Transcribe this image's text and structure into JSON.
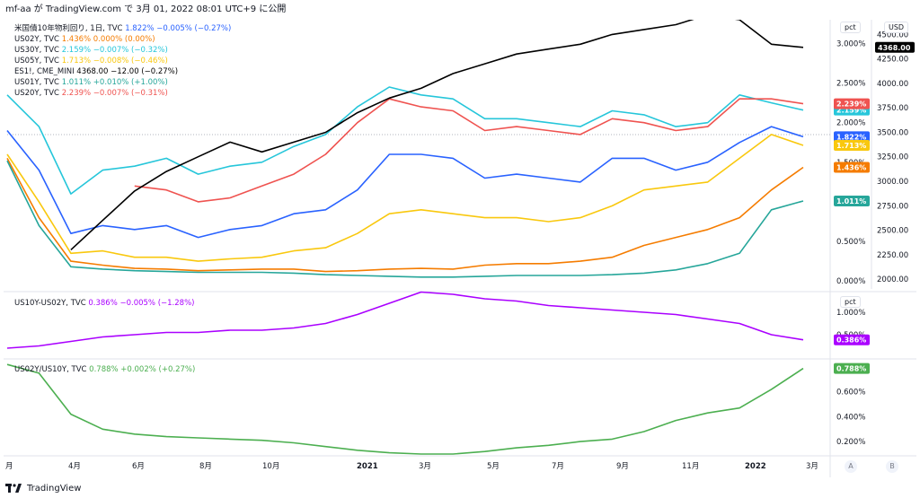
{
  "header": {
    "text": "mf-aa が TradingView.com で 3月 01, 2022 08:01 UTC+9 に公開"
  },
  "footer": {
    "brand": "TradingView"
  },
  "buttons": {
    "a": "A",
    "b": "B"
  },
  "colors": {
    "us10y": "#2962ff",
    "us02y": "#f57c00",
    "us30y": "#26c6da",
    "us05y": "#f9c80e",
    "es1": "#000000",
    "us01y": "#26a69a",
    "us20y": "#ef5350",
    "spread1": "#aa00ff",
    "spread2": "#4caf50"
  },
  "legend_main": [
    {
      "name": "米国債10年物利回り, 1日, TVC",
      "values": "1.822%  −0.005% (−0.27%)",
      "color": "#2962ff"
    },
    {
      "name": "US02Y, TVC",
      "values": "1.436%  0.000% (0.00%)",
      "color": "#f57c00"
    },
    {
      "name": "US30Y, TVC",
      "values": "2.159%  −0.007% (−0.32%)",
      "color": "#26c6da"
    },
    {
      "name": "US05Y, TVC",
      "values": "1.713%  −0.008% (−0.46%)",
      "color": "#f9c80e"
    },
    {
      "name": "ES1!, CME_MINI",
      "values": "4368.00  −12.00 (−0.27%)",
      "color": "#000000"
    },
    {
      "name": "US01Y, TVC",
      "values": "1.011%  +0.010% (+1.00%)",
      "color": "#26a69a"
    },
    {
      "name": "US20Y, TVC",
      "values": "2.239%  −0.007% (−0.31%)",
      "color": "#ef5350"
    }
  ],
  "legend_pane2": {
    "name": "US10Y-US02Y, TVC",
    "values": "0.386%  −0.005% (−1.28%)",
    "color": "#aa00ff"
  },
  "legend_pane3": {
    "name": "US02Y/US10Y, TVC",
    "values": "0.788%  +0.002% (+0.27%)",
    "color": "#4caf50"
  },
  "pct_label": "pct",
  "usd_label": "USD",
  "chart_data": {
    "type": "line",
    "x_ticks": [
      "月",
      "4月",
      "6月",
      "8月",
      "10月",
      "2021",
      "3月",
      "5月",
      "7月",
      "9月",
      "11月",
      "2022",
      "3月"
    ],
    "main_pane": {
      "y_left_ticks": [
        "3.000%",
        "2.500%",
        "2.000%",
        "1.500%",
        "1.000%",
        "0.500%",
        "0.000%"
      ],
      "y_right_ticks": [
        "4500.00",
        "4250.00",
        "4000.00",
        "3750.00",
        "3500.00",
        "3250.00",
        "3000.00",
        "2750.00",
        "2500.00",
        "2250.00",
        "2000.00"
      ],
      "ylim_pct": [
        -0.1,
        3.3
      ],
      "ylim_usd": [
        1900,
        4650
      ],
      "series": [
        {
          "key": "us30y",
          "name": "US30Y",
          "last": "2.159%",
          "values": [
            2.35,
            1.95,
            1.1,
            1.4,
            1.45,
            1.55,
            1.35,
            1.45,
            1.5,
            1.7,
            1.85,
            2.2,
            2.45,
            2.35,
            2.3,
            2.05,
            2.05,
            2.0,
            1.95,
            2.15,
            2.1,
            1.95,
            2.0,
            2.35,
            2.25,
            2.159
          ]
        },
        {
          "key": "us20y",
          "name": "US20Y",
          "last": "2.239%",
          "values": [
            null,
            null,
            null,
            null,
            1.2,
            1.15,
            1.0,
            1.05,
            1.2,
            1.35,
            1.6,
            2.0,
            2.3,
            2.2,
            2.15,
            1.9,
            1.95,
            1.9,
            1.85,
            2.05,
            2.0,
            1.9,
            1.95,
            2.3,
            2.3,
            2.239
          ]
        },
        {
          "key": "us10y",
          "name": "US10Y",
          "last": "1.822%",
          "values": [
            1.9,
            1.4,
            0.6,
            0.7,
            0.65,
            0.7,
            0.55,
            0.65,
            0.7,
            0.85,
            0.9,
            1.15,
            1.6,
            1.6,
            1.55,
            1.3,
            1.35,
            1.3,
            1.25,
            1.55,
            1.55,
            1.4,
            1.5,
            1.75,
            1.95,
            1.822
          ]
        },
        {
          "key": "us05y",
          "name": "US05Y",
          "last": "1.713%",
          "values": [
            1.6,
            1.0,
            0.35,
            0.38,
            0.3,
            0.3,
            0.25,
            0.28,
            0.3,
            0.38,
            0.42,
            0.6,
            0.85,
            0.9,
            0.85,
            0.8,
            0.8,
            0.75,
            0.8,
            0.95,
            1.15,
            1.2,
            1.25,
            1.55,
            1.85,
            1.713
          ]
        },
        {
          "key": "us02y",
          "name": "US02Y",
          "last": "1.436%",
          "values": [
            1.55,
            0.8,
            0.25,
            0.2,
            0.16,
            0.15,
            0.13,
            0.14,
            0.15,
            0.15,
            0.12,
            0.13,
            0.15,
            0.16,
            0.15,
            0.2,
            0.22,
            0.22,
            0.25,
            0.3,
            0.45,
            0.55,
            0.65,
            0.8,
            1.15,
            1.436
          ]
        },
        {
          "key": "us01y",
          "name": "US01Y",
          "last": "1.011%",
          "values": [
            1.52,
            0.7,
            0.18,
            0.15,
            0.13,
            0.12,
            0.11,
            0.11,
            0.11,
            0.1,
            0.08,
            0.07,
            0.06,
            0.05,
            0.05,
            0.06,
            0.07,
            0.07,
            0.07,
            0.08,
            0.1,
            0.14,
            0.22,
            0.35,
            0.9,
            1.011
          ]
        },
        {
          "key": "es1",
          "name": "ES1!",
          "axis": "usd",
          "last": "4368.00",
          "values": [
            null,
            null,
            2300,
            2600,
            2900,
            3100,
            3250,
            3400,
            3300,
            3400,
            3500,
            3700,
            3850,
            3950,
            4100,
            4200,
            4300,
            4350,
            4400,
            4500,
            4550,
            4600,
            4700,
            4650,
            4400,
            4368
          ]
        }
      ]
    },
    "pane2": {
      "y_ticks": [
        "1.000%",
        "0.500%"
      ],
      "ylim": [
        0.0,
        1.4
      ],
      "series": [
        {
          "key": "spread1",
          "name": "US10Y-US02Y",
          "last": "0.386%",
          "values": [
            0.2,
            0.25,
            0.35,
            0.45,
            0.5,
            0.55,
            0.55,
            0.6,
            0.6,
            0.65,
            0.75,
            0.95,
            1.2,
            1.45,
            1.4,
            1.3,
            1.25,
            1.15,
            1.1,
            1.05,
            1.0,
            0.95,
            0.85,
            0.75,
            0.5,
            0.386
          ]
        }
      ]
    },
    "pane3": {
      "y_ticks": [
        "0.600%",
        "0.400%",
        "0.200%"
      ],
      "ylim": [
        0.1,
        0.85
      ],
      "series": [
        {
          "key": "spread2",
          "name": "US02Y/US10Y",
          "last": "0.788%",
          "values": [
            0.82,
            0.75,
            0.42,
            0.3,
            0.26,
            0.24,
            0.23,
            0.22,
            0.21,
            0.19,
            0.16,
            0.13,
            0.11,
            0.1,
            0.1,
            0.12,
            0.15,
            0.17,
            0.2,
            0.22,
            0.28,
            0.37,
            0.43,
            0.47,
            0.62,
            0.788
          ]
        }
      ]
    }
  }
}
